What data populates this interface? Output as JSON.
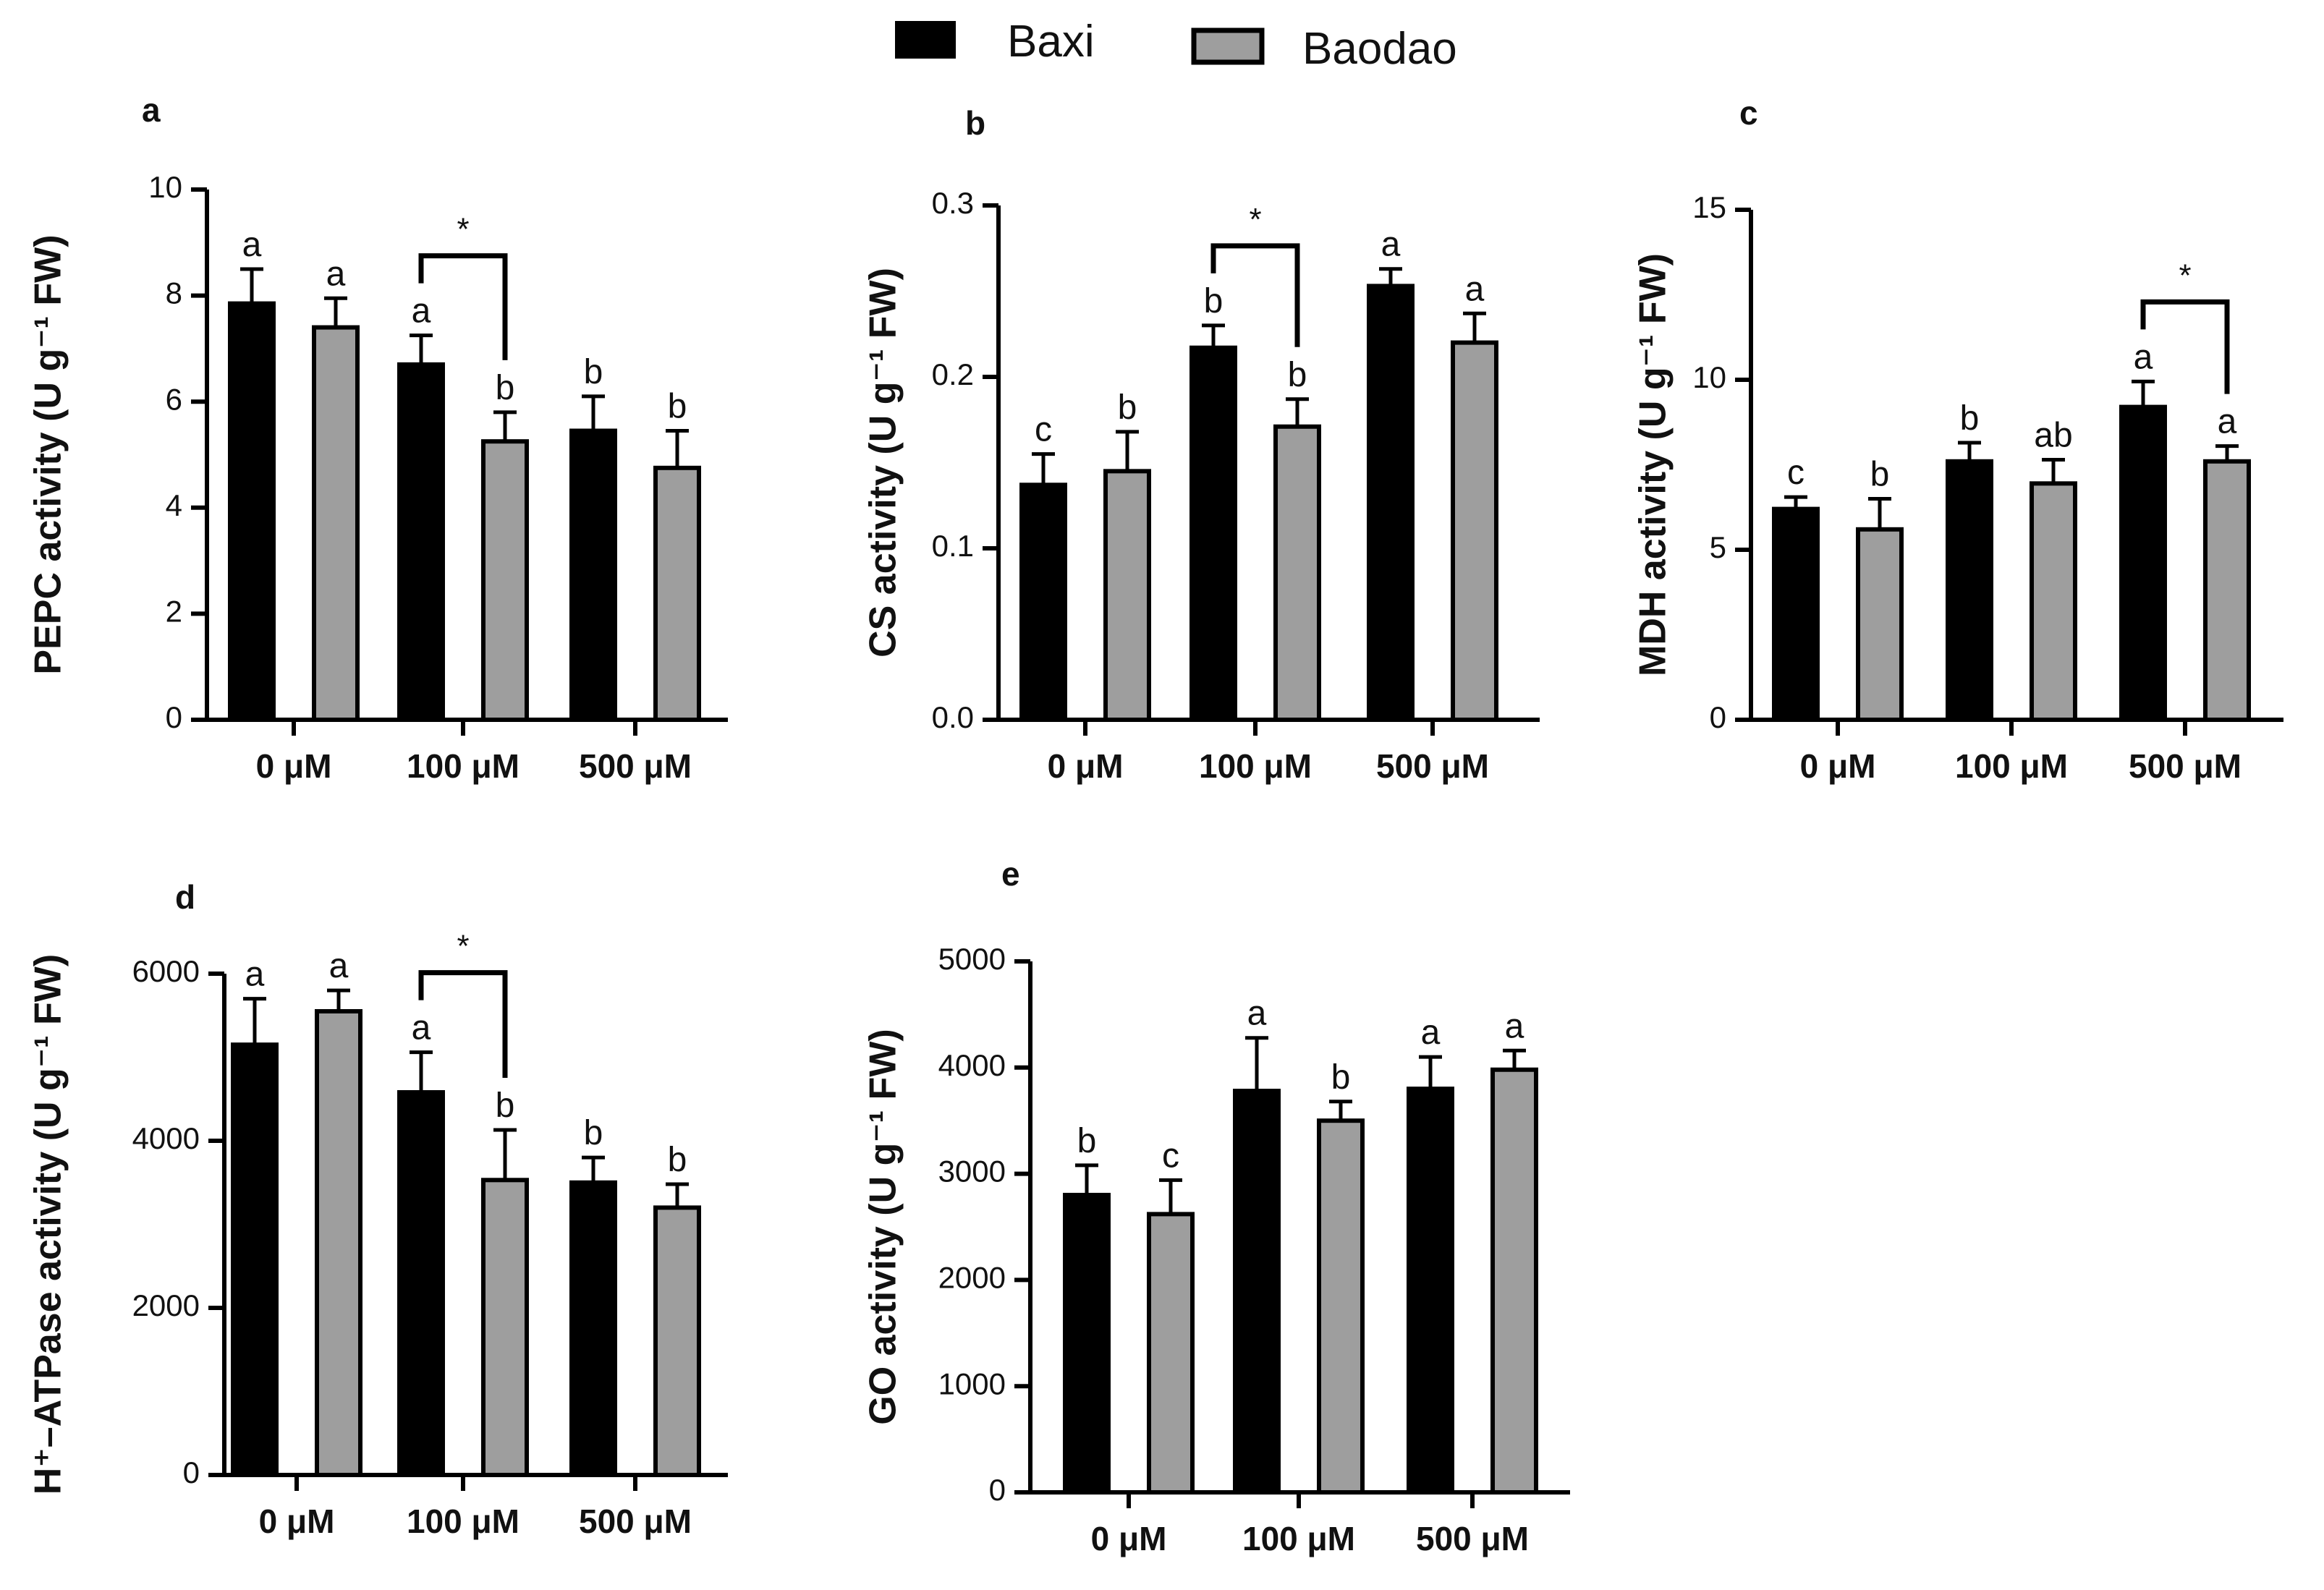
{
  "legend": {
    "items": [
      {
        "label": "Baxi",
        "color": "#000000"
      },
      {
        "label": "Baodao",
        "color": "#9e9e9e"
      }
    ]
  },
  "chart_data": [
    {
      "panel": "a",
      "type": "bar",
      "ylabel": "PEPC activity (U g⁻¹ FW)",
      "ylim": [
        0,
        10
      ],
      "yticks": [
        0,
        2,
        4,
        6,
        8,
        10
      ],
      "categories": [
        "0 μM",
        "100 μM",
        "500 μM"
      ],
      "series": [
        {
          "name": "Baxi",
          "values": [
            7.85,
            6.7,
            5.45
          ],
          "errors": [
            0.65,
            0.55,
            0.65
          ],
          "letters": [
            "a",
            "a",
            "b"
          ]
        },
        {
          "name": "Baodao",
          "values": [
            7.4,
            5.25,
            4.75
          ],
          "errors": [
            0.55,
            0.55,
            0.7
          ],
          "letters": [
            "a",
            "b",
            "b"
          ]
        }
      ],
      "significance": [
        {
          "category": 1,
          "label": "*"
        }
      ]
    },
    {
      "panel": "b",
      "type": "bar",
      "ylabel": "CS activity (U g⁻¹ FW)",
      "ylim": [
        0,
        0.3
      ],
      "yticks": [
        "0.0",
        "0.1",
        "0.2",
        "0.3"
      ],
      "categories": [
        "0 μM",
        "100 μM",
        "500 μM"
      ],
      "series": [
        {
          "name": "Baxi",
          "values": [
            0.137,
            0.217,
            0.253
          ],
          "errors": [
            0.018,
            0.013,
            0.01
          ],
          "letters": [
            "c",
            "b",
            "a"
          ]
        },
        {
          "name": "Baodao",
          "values": [
            0.145,
            0.171,
            0.22
          ],
          "errors": [
            0.023,
            0.016,
            0.017
          ],
          "letters": [
            "b",
            "b",
            "a"
          ]
        }
      ],
      "significance": [
        {
          "category": 1,
          "label": "*"
        }
      ]
    },
    {
      "panel": "c",
      "type": "bar",
      "ylabel": "MDH activity (U g⁻¹ FW)",
      "ylim": [
        0,
        15
      ],
      "yticks": [
        0,
        5,
        10,
        15
      ],
      "categories": [
        "0 μM",
        "100 μM",
        "500 μM"
      ],
      "series": [
        {
          "name": "Baxi",
          "values": [
            6.2,
            7.6,
            9.2
          ],
          "errors": [
            0.35,
            0.55,
            0.75
          ],
          "letters": [
            "c",
            "b",
            "a"
          ]
        },
        {
          "name": "Baodao",
          "values": [
            5.6,
            6.95,
            7.6
          ],
          "errors": [
            0.9,
            0.7,
            0.45
          ],
          "letters": [
            "b",
            "ab",
            "a"
          ]
        }
      ],
      "significance": [
        {
          "category": 2,
          "label": "*"
        }
      ]
    },
    {
      "panel": "d",
      "type": "bar",
      "ylabel": "H⁺–ATPase activity (U g⁻¹ FW)",
      "ylim": [
        0,
        6000
      ],
      "yticks": [
        0,
        2000,
        4000,
        6000
      ],
      "categories": [
        "0 μM",
        "100 μM",
        "500 μM"
      ],
      "series": [
        {
          "name": "Baxi",
          "values": [
            5150,
            4580,
            3500
          ],
          "errors": [
            550,
            480,
            300
          ],
          "letters": [
            "a",
            "a",
            "b"
          ]
        },
        {
          "name": "Baodao",
          "values": [
            5550,
            3530,
            3200
          ],
          "errors": [
            250,
            600,
            280
          ],
          "letters": [
            "a",
            "b",
            "b"
          ]
        }
      ],
      "significance": [
        {
          "category": 1,
          "label": "*"
        }
      ]
    },
    {
      "panel": "e",
      "type": "bar",
      "ylabel": "GO activity (U g⁻¹ FW)",
      "ylim": [
        0,
        5000
      ],
      "yticks": [
        0,
        1000,
        2000,
        3000,
        4000,
        5000
      ],
      "categories": [
        "0 μM",
        "100 μM",
        "500 μM"
      ],
      "series": [
        {
          "name": "Baxi",
          "values": [
            2800,
            3780,
            3800
          ],
          "errors": [
            280,
            500,
            300
          ],
          "letters": [
            "b",
            "a",
            "a"
          ]
        },
        {
          "name": "Baodao",
          "values": [
            2620,
            3500,
            3980
          ],
          "errors": [
            320,
            180,
            180
          ],
          "letters": [
            "c",
            "b",
            "a"
          ]
        }
      ],
      "significance": []
    }
  ]
}
